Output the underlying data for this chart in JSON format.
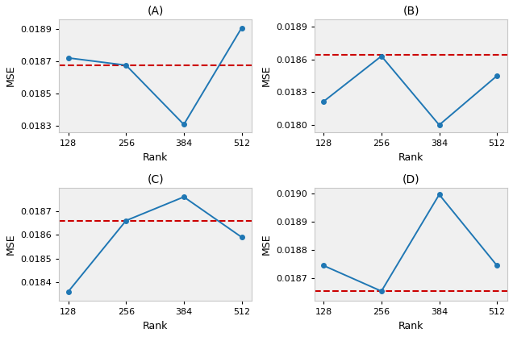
{
  "ranks": [
    128,
    256,
    384,
    512
  ],
  "A": {
    "values": [
      0.01872,
      0.018675,
      0.01831,
      0.018905
    ],
    "hline": 0.018675,
    "hline_color": "#cc0000",
    "ylim": [
      0.01826,
      0.01896
    ],
    "yticks": [
      0.0183,
      0.0185,
      0.0187,
      0.0189
    ],
    "title": "(A)"
  },
  "B": {
    "values": [
      0.018215,
      0.01863,
      0.018,
      0.01845
    ],
    "hline": 0.01864,
    "hline_color": "#cc0000",
    "ylim": [
      0.01793,
      0.01897
    ],
    "yticks": [
      0.018,
      0.0183,
      0.0186,
      0.0189
    ],
    "title": "(B)"
  },
  "C": {
    "values": [
      0.01836,
      0.01866,
      0.01876,
      0.01859
    ],
    "hline": 0.01866,
    "hline_color": "#cc0000",
    "ylim": [
      0.01832,
      0.0188
    ],
    "yticks": [
      0.0184,
      0.0185,
      0.0186,
      0.0187
    ],
    "title": "(C)"
  },
  "D": {
    "values": [
      0.018745,
      0.018655,
      0.018995,
      0.018745
    ],
    "hline": 0.018655,
    "hline_color": "#cc0000",
    "ylim": [
      0.01862,
      0.01902
    ],
    "yticks": [
      0.0187,
      0.0188,
      0.0189,
      0.019
    ],
    "title": "(D)"
  },
  "line_color": "#1f77b4",
  "marker": "o",
  "markersize": 4,
  "xlabel": "Rank",
  "ylabel": "MSE",
  "figsize": [
    6.36,
    4.18
  ],
  "dpi": 100,
  "bg_color": "#f0f0f0",
  "spine_color": "#c8c8c8"
}
